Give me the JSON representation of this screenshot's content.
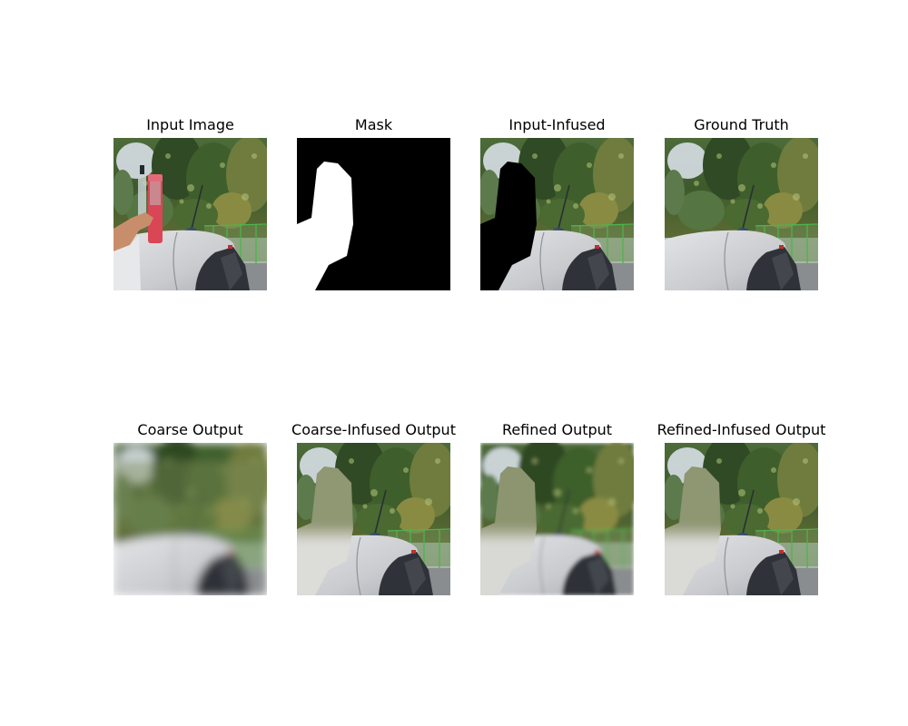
{
  "panels": [
    {
      "title": "Input Image"
    },
    {
      "title": "Mask"
    },
    {
      "title": "Input-Infused"
    },
    {
      "title": "Ground Truth"
    },
    {
      "title": "Coarse Output"
    },
    {
      "title": "Coarse-Infused Output"
    },
    {
      "title": "Refined Output"
    },
    {
      "title": "Refined-Infused Output"
    }
  ]
}
